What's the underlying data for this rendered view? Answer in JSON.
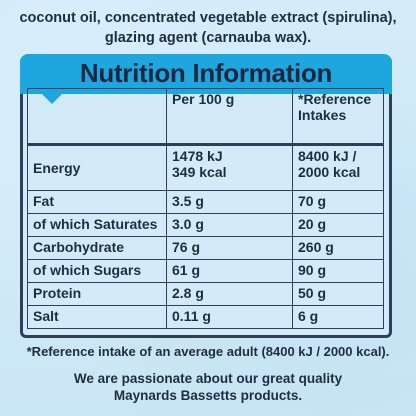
{
  "ingredients_lines": [
    "coconut oil, concentrated vegetable extract (spirulina),",
    "glazing agent (carnauba wax)."
  ],
  "title": "Nutrition Information",
  "table": {
    "headers": [
      "",
      "Per 100 g",
      "*Reference Intakes"
    ],
    "rows": [
      {
        "label": "Energy",
        "per100": "1478 kJ\n349 kcal",
        "ri": "8400 kJ /\n2000 kcal"
      },
      {
        "label": "Fat",
        "per100": "3.5 g",
        "ri": "70 g"
      },
      {
        "label": "of which Saturates",
        "per100": "3.0 g",
        "ri": "20 g"
      },
      {
        "label": "Carbohydrate",
        "per100": "76 g",
        "ri": "260 g"
      },
      {
        "label": "of which Sugars",
        "per100": "61 g",
        "ri": "90 g"
      },
      {
        "label": "Protein",
        "per100": "2.8 g",
        "ri": "50 g"
      },
      {
        "label": "Salt",
        "per100": "0.11 g",
        "ri": "6 g"
      }
    ]
  },
  "footnote": "*Reference intake of an average adult (8400 kJ / 2000 kcal).",
  "closing_lines": [
    "We are passionate about our great quality",
    "Maynards Bassetts products."
  ],
  "colors": {
    "background": "#cfe9f7",
    "header_blue": "#1ea7de",
    "text_navy": "#1f2d44"
  }
}
